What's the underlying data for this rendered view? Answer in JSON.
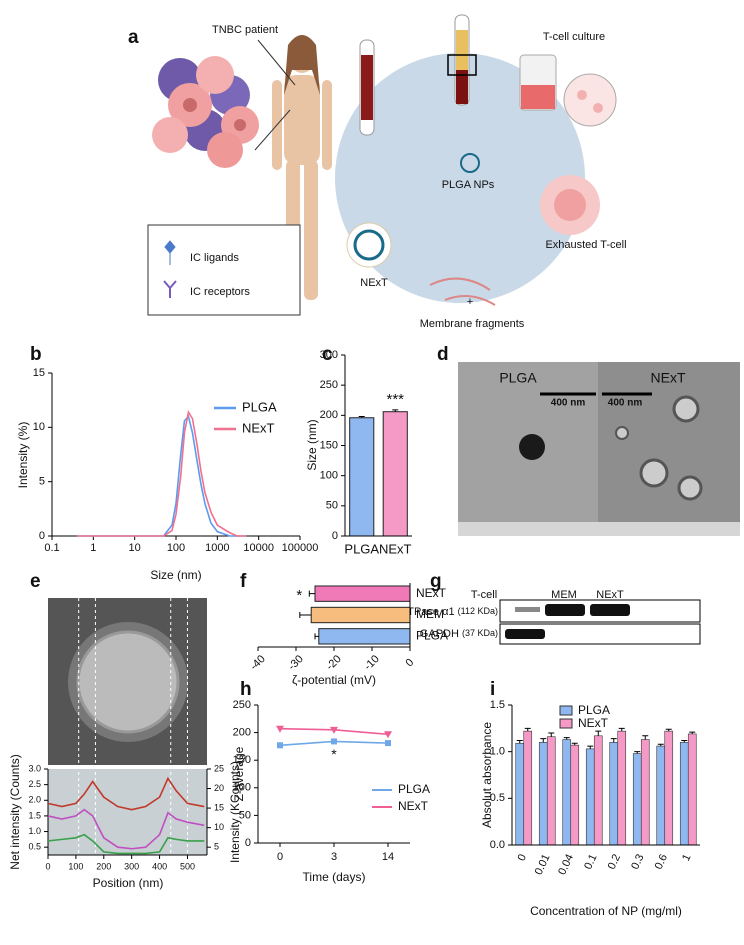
{
  "panel_labels": [
    "a",
    "b",
    "c",
    "d",
    "e",
    "f",
    "g",
    "h",
    "i"
  ],
  "diagram": {
    "patient": "TNBC patient",
    "culture": "T-cell culture",
    "nps": "PLGA NPs",
    "exhausted": "Exhausted T-cell",
    "next": "NExT",
    "fragments": "Membrane fragments",
    "plus": "+",
    "legend": [
      "IC ligands",
      "IC receptors"
    ]
  },
  "micrographs": {
    "labels": [
      "PLGA",
      "NExT"
    ],
    "scale_bars": [
      "400 nm",
      "400 nm"
    ]
  },
  "blot": {
    "lanes": [
      "T-cell",
      "MEM",
      "NExT"
    ],
    "rows": [
      {
        "name": "ATPase α1",
        "size": "(112 KDa)"
      },
      {
        "name": "GAPDH",
        "size": "(37 KDa)"
      }
    ]
  },
  "chart_data": [
    {
      "type": "line",
      "xscale": "log",
      "xlabel": "Size (nm)",
      "ylabel": "Intensity (%)",
      "xlim": [
        0.1,
        100000
      ],
      "xticks": [
        0.1,
        1,
        10,
        100,
        1000,
        10000,
        100000
      ],
      "ylim": [
        0,
        15
      ],
      "yticks": [
        0,
        5,
        10,
        15
      ],
      "legend": "right",
      "x": [
        0.4,
        10,
        50,
        80,
        100,
        130,
        160,
        200,
        250,
        320,
        400,
        500,
        700,
        1000,
        2000,
        3000,
        5000
      ],
      "series": [
        {
          "name": "PLGA",
          "color": "#5b9bef",
          "values": [
            0,
            0,
            0,
            1,
            3,
            7.5,
            10.6,
            11,
            9.5,
            7,
            4.8,
            3,
            1.2,
            0.4,
            0,
            0,
            0
          ]
        },
        {
          "name": "NExT",
          "color": "#f0708f",
          "values": [
            0,
            0,
            0,
            0.5,
            2,
            5.5,
            9.5,
            11.4,
            10.8,
            8.5,
            6,
            4,
            2.2,
            1,
            0.3,
            0,
            0
          ]
        }
      ]
    },
    {
      "type": "bar",
      "ylabel": "Size (nm)",
      "categories": [
        "PLGA",
        "NExT"
      ],
      "values": [
        196,
        206
      ],
      "errors": [
        2,
        3
      ],
      "colors": [
        "#8fb8f0",
        "#f59ac6"
      ],
      "ylim": [
        0,
        300
      ],
      "yticks": [
        0,
        50,
        100,
        150,
        200,
        250,
        300
      ],
      "annotation": "***"
    },
    {
      "type": "line",
      "xlabel": "Position (nm)",
      "ylabel": "Net intensity (Counts)",
      "y2label": "Intensity (KCounts)",
      "xlim": [
        0,
        570
      ],
      "xticks": [
        0,
        100,
        200,
        300,
        400,
        500
      ],
      "ylim": [
        0.25,
        3
      ],
      "yticks": [
        {
          "value": 0.5,
          "label": "0.5"
        },
        {
          "value": 1,
          "label": "1.0"
        },
        {
          "value": 1.5,
          "label": "1.5"
        },
        {
          "value": 2,
          "label": "2.0"
        },
        {
          "value": 2.5,
          "label": "2.5"
        },
        {
          "value": 3,
          "label": "3.0"
        }
      ],
      "y2lim": [
        3,
        25
      ],
      "y2ticks": [
        5,
        10,
        15,
        20,
        25
      ],
      "guides": [
        110,
        170,
        440,
        500
      ],
      "x": [
        0,
        50,
        100,
        130,
        160,
        200,
        250,
        300,
        350,
        400,
        430,
        460,
        500,
        560
      ],
      "series": [
        {
          "color": "#c0392b",
          "values": [
            1.9,
            1.8,
            1.9,
            2.2,
            2.6,
            2.1,
            1.8,
            1.7,
            1.8,
            2.1,
            2.7,
            2.3,
            1.9,
            1.8
          ]
        },
        {
          "color": "#c050c0",
          "values": [
            1.5,
            1.4,
            1.5,
            1.7,
            1.5,
            0.8,
            0.5,
            0.45,
            0.5,
            0.9,
            1.6,
            1.4,
            1.3,
            1.2
          ]
        },
        {
          "color": "#3aa04a",
          "values": [
            0.7,
            0.75,
            0.8,
            0.9,
            0.7,
            0.35,
            0.3,
            0.3,
            0.3,
            0.35,
            0.8,
            0.75,
            0.7,
            0.7
          ]
        }
      ]
    },
    {
      "type": "hbar",
      "xlabel": "ζ-potential (mV)",
      "categories": [
        "NExT",
        "MEM",
        "PLGA"
      ],
      "values": [
        -25,
        -26,
        -24
      ],
      "errors": [
        1.5,
        3,
        1
      ],
      "colors": [
        "#f07ab8",
        "#f7bd7f",
        "#8fb8f0"
      ],
      "xlim": [
        -40,
        0
      ],
      "xticks": [
        -40,
        -30,
        -20,
        -10,
        0
      ],
      "annotation": "*"
    },
    {
      "type": "line",
      "xlabel": "Time (days)",
      "ylabel": "Z-average",
      "categories": [
        "0",
        "3",
        "14"
      ],
      "ylim": [
        0,
        250
      ],
      "yticks": [
        0,
        50,
        100,
        150,
        200,
        250
      ],
      "annotation": "*",
      "legend": "lower right",
      "series": [
        {
          "name": "PLGA",
          "color": "#6fa8e8",
          "values": [
            177,
            184,
            181
          ]
        },
        {
          "name": "NExT",
          "color": "#ef5f95",
          "values": [
            207,
            205,
            197
          ]
        }
      ]
    },
    {
      "type": "grouped_bar",
      "xlabel": "Concentration of NP (mg/ml)",
      "ylabel": "Absolut absorbance",
      "categories": [
        "0",
        "0.01",
        "0.04",
        "0.1",
        "0.2",
        "0.3",
        "0.6",
        "1"
      ],
      "ylim": [
        0,
        1.5
      ],
      "yticks": [
        {
          "value": 0,
          "label": "0.0"
        },
        {
          "value": 0.5,
          "label": "0.5"
        },
        {
          "value": 1,
          "label": "1.0"
        },
        {
          "value": 1.5,
          "label": "1.5"
        }
      ],
      "legend": "top",
      "series": [
        {
          "name": "PLGA",
          "color": "#8fb8f0",
          "values": [
            1.09,
            1.1,
            1.13,
            1.03,
            1.1,
            0.98,
            1.06,
            1.1
          ],
          "errors": [
            0.03,
            0.04,
            0.02,
            0.03,
            0.04,
            0.02,
            0.02,
            0.02
          ]
        },
        {
          "name": "NExT",
          "color": "#f59ac6",
          "values": [
            1.22,
            1.16,
            1.07,
            1.17,
            1.22,
            1.13,
            1.22,
            1.19
          ],
          "errors": [
            0.03,
            0.04,
            0.02,
            0.05,
            0.03,
            0.04,
            0.02,
            0.02
          ]
        }
      ]
    }
  ]
}
